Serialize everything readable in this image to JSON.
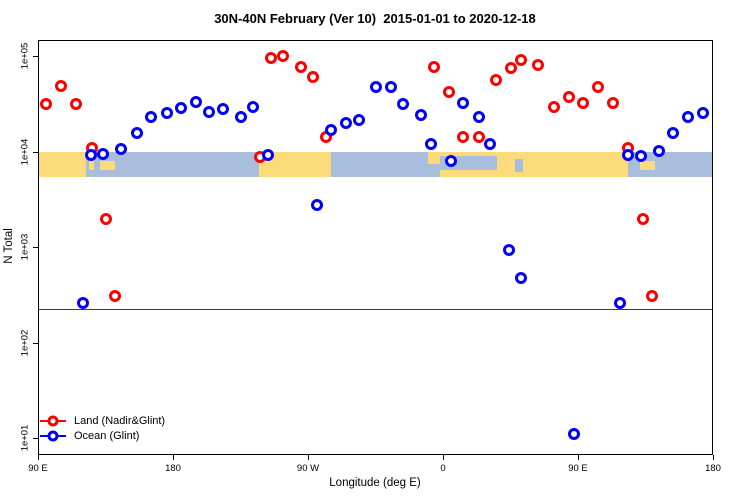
{
  "chart_data": {
    "type": "scatter",
    "title": "30N-40N February (Ver 10)  2015-01-01 to 2020-12-18",
    "xlabel": "Longitude (deg E)",
    "ylabel": "N Total",
    "x_axis": {
      "domain": [
        90,
        540
      ],
      "ticks": [
        {
          "label": "90 E",
          "lon": 90
        },
        {
          "label": "180",
          "lon": 180
        },
        {
          "label": "90 W",
          "lon": 270
        },
        {
          "label": "0",
          "lon": 360
        },
        {
          "label": "90 E",
          "lon": 450
        },
        {
          "label": "180",
          "lon": 540
        }
      ]
    },
    "y_axis": {
      "scale": "log",
      "domain": [
        10,
        100000
      ],
      "ticks": [
        {
          "label": "1e+05",
          "value": 100000
        },
        {
          "label": "1e+04",
          "value": 10000
        },
        {
          "label": "1e+03",
          "value": 1000
        },
        {
          "label": "1e+02",
          "value": 100
        },
        {
          "label": "1e+01",
          "value": 10
        }
      ]
    },
    "grid": false,
    "legend": {
      "position": "bottom-left",
      "entries": [
        {
          "label": "Land (Nadir&Glint)",
          "color": "#ff0000"
        },
        {
          "label": "Ocean (Glint)",
          "color": "#0000ff"
        }
      ]
    },
    "threshold_line": {
      "value": 224,
      "color": "#3f3f3f"
    },
    "map_band": {
      "top_value": 9900,
      "bottom_value": 5400,
      "land_color": "#fbdb7a",
      "ocean_color": "#a9bedc",
      "segments": [
        {
          "from": 90,
          "to": 122,
          "type": "land"
        },
        {
          "from": 122,
          "to": 237,
          "type": "ocean"
        },
        {
          "from": 237,
          "to": 285,
          "type": "land"
        },
        {
          "from": 285,
          "to": 350,
          "type": "ocean"
        },
        {
          "from": 350,
          "to": 483,
          "type": "land"
        },
        {
          "from": 483,
          "to": 540,
          "type": "ocean"
        }
      ],
      "patches": [
        {
          "from": 124,
          "to": 127.5,
          "type": "land",
          "top": 0.25,
          "height": 0.45
        },
        {
          "from": 131,
          "to": 141,
          "type": "land",
          "top": 0.35,
          "height": 0.35
        },
        {
          "from": 350,
          "to": 358,
          "type": "ocean",
          "top": 0.5,
          "height": 0.5
        },
        {
          "from": 358,
          "to": 396,
          "type": "ocean",
          "top": 0.15,
          "height": 0.55
        },
        {
          "from": 408,
          "to": 413,
          "type": "ocean",
          "top": 0.3,
          "height": 0.5
        },
        {
          "from": 491,
          "to": 501,
          "type": "land",
          "top": 0.35,
          "height": 0.35
        }
      ]
    },
    "series": [
      {
        "name": "Land (Nadir&Glint)",
        "color": "#ff0000",
        "points": [
          [
            95,
            31600
          ],
          [
            105,
            49000
          ],
          [
            115,
            31600
          ],
          [
            126,
            11000
          ],
          [
            135,
            1960
          ],
          [
            141,
            310
          ],
          [
            238,
            8700
          ],
          [
            245,
            95500
          ],
          [
            253,
            100000
          ],
          [
            265,
            77600
          ],
          [
            273,
            61000
          ],
          [
            282,
            14200
          ],
          [
            354,
            76700
          ],
          [
            364,
            41700
          ],
          [
            373,
            14200
          ],
          [
            384,
            14200
          ],
          [
            395,
            55600
          ],
          [
            405,
            74000
          ],
          [
            412,
            90000
          ],
          [
            423,
            80500
          ],
          [
            434,
            29200
          ],
          [
            444,
            37300
          ],
          [
            453,
            32000
          ],
          [
            463,
            47600
          ],
          [
            473,
            32000
          ],
          [
            483,
            10900
          ],
          [
            493,
            1960
          ],
          [
            499,
            307
          ]
        ]
      },
      {
        "name": "Ocean (Glint)",
        "color": "#0000ff",
        "points": [
          [
            120,
            258
          ],
          [
            125,
            9200
          ],
          [
            133,
            9400
          ],
          [
            145,
            10600
          ],
          [
            156,
            15500
          ],
          [
            165,
            22800
          ],
          [
            176,
            25100
          ],
          [
            185,
            28600
          ],
          [
            195,
            33200
          ],
          [
            204,
            26100
          ],
          [
            213,
            27900
          ],
          [
            225,
            23100
          ],
          [
            233,
            29200
          ],
          [
            243,
            9300
          ],
          [
            276,
            2760
          ],
          [
            285,
            16800
          ],
          [
            295,
            19700
          ],
          [
            304,
            21200
          ],
          [
            315,
            47600
          ],
          [
            325,
            47600
          ],
          [
            333,
            31600
          ],
          [
            345,
            24200
          ],
          [
            352,
            12000
          ],
          [
            365,
            7900
          ],
          [
            373,
            32400
          ],
          [
            384,
            23100
          ],
          [
            391,
            12000
          ],
          [
            404,
            930
          ],
          [
            412,
            473
          ],
          [
            447,
            11
          ],
          [
            478,
            258
          ],
          [
            483,
            9200
          ],
          [
            492,
            9000
          ],
          [
            504,
            10200
          ],
          [
            513,
            15700
          ],
          [
            523,
            23100
          ],
          [
            533,
            25600
          ]
        ]
      }
    ]
  }
}
